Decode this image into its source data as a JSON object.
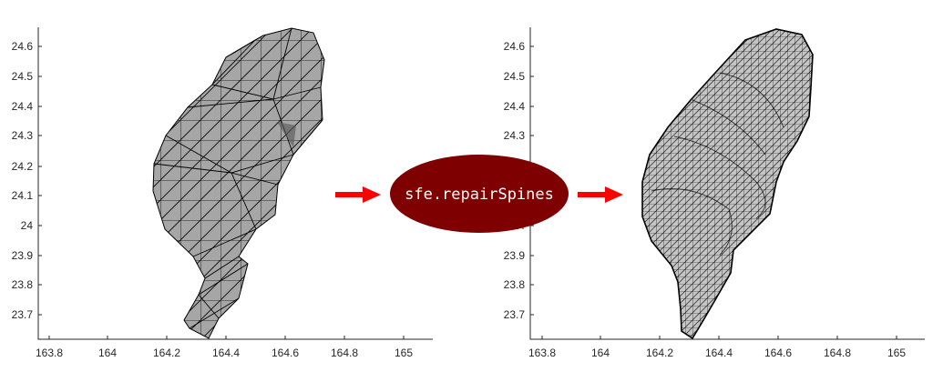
{
  "panels": [
    {
      "id": "left",
      "mesh": "coarse",
      "x_ticks": [
        "163.8",
        "164",
        "164.2",
        "164.4",
        "164.6",
        "164.8",
        "165"
      ],
      "y_ticks": [
        "24.6",
        "24.5",
        "24.4",
        "24.3",
        "24.2",
        "24.1",
        "24",
        "23.9",
        "23.8",
        "23.7"
      ]
    },
    {
      "id": "right",
      "mesh": "fine",
      "x_ticks": [
        "163.8",
        "164",
        "164.2",
        "164.4",
        "164.6",
        "164.8",
        "165"
      ],
      "y_ticks": [
        "24.6",
        "24.5",
        "24.4",
        "24.3",
        "24.2",
        "24.1",
        "24",
        "23.9",
        "23.8",
        "23.7"
      ]
    }
  ],
  "function_label": "sfe.repairSpines",
  "colors": {
    "arrow": "#ff0000",
    "ellipse": "#7f0000",
    "coarse_fill": "#a6a6a6",
    "fine_fill": "#bdbdbd",
    "mesh_line": "#000000"
  },
  "icons": {
    "arrow_left": "right-arrow-icon",
    "arrow_right": "right-arrow-icon"
  }
}
